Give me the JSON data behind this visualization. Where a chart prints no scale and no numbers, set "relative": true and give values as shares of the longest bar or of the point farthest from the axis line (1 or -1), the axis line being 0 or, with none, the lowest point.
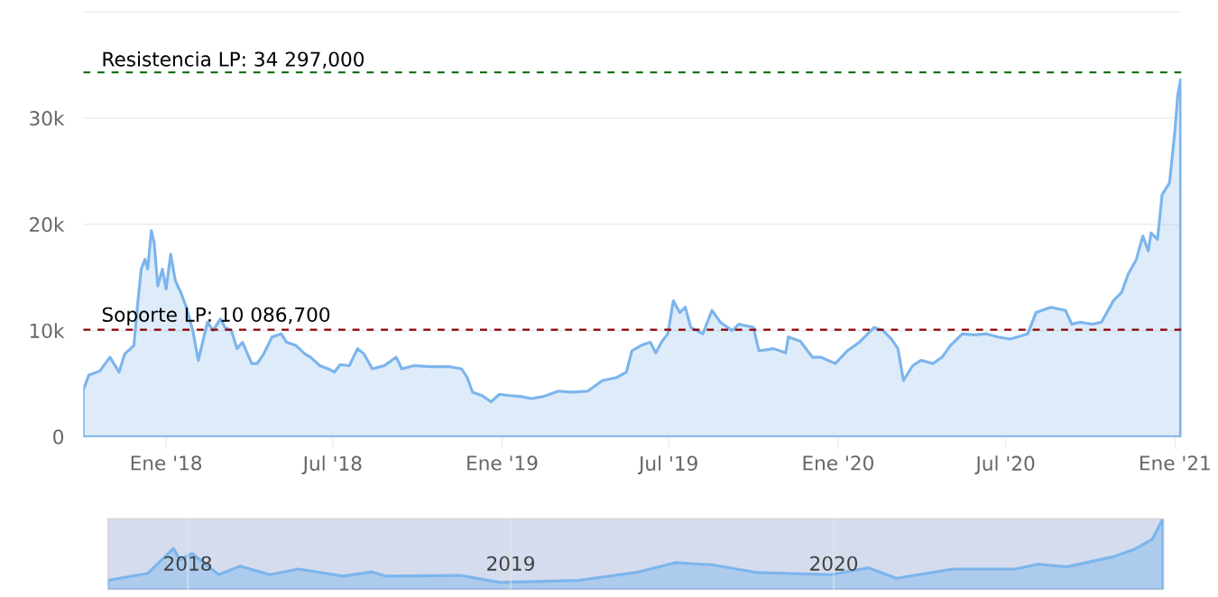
{
  "chart_data": [
    {
      "type": "area",
      "color": "#7cb5ec",
      "grid": "y",
      "xlim": [
        "2017-10-03",
        "2021-01-08"
      ],
      "ylim": [
        0,
        40000
      ],
      "xticks": [
        {
          "value": "2018-01-01",
          "label": "Ene '18"
        },
        {
          "value": "2018-07-01",
          "label": "Jul '18"
        },
        {
          "value": "2019-01-01",
          "label": "Ene '19"
        },
        {
          "value": "2019-07-01",
          "label": "Jul '19"
        },
        {
          "value": "2020-01-01",
          "label": "Ene '20"
        },
        {
          "value": "2020-07-01",
          "label": "Jul '20"
        },
        {
          "value": "2021-01-01",
          "label": "Ene '21"
        }
      ],
      "yticks": [
        0,
        {
          "value": 10000,
          "label": "10k"
        },
        {
          "value": 20000,
          "label": "20k"
        },
        {
          "value": 30000,
          "label": "30k"
        },
        {
          "value": 40000,
          "label": null
        }
      ],
      "ref_lines": [
        {
          "axis": "y",
          "value": 34297,
          "label": "Resistencia LP: 34 297,000",
          "color": "#006400",
          "line_style": "dashed"
        },
        {
          "axis": "y",
          "value": 10086.7,
          "label": "Soporte LP: 10 086,700",
          "color": "#8b0000",
          "line_style": "dashed"
        }
      ],
      "x": [
        "2017-10-03",
        "2017-10-09",
        "2017-10-21",
        "2017-11-01",
        "2017-11-11",
        "2017-11-17",
        "2017-11-27",
        "2017-12-02",
        "2017-12-05",
        "2017-12-09",
        "2017-12-12",
        "2017-12-16",
        "2017-12-19",
        "2017-12-23",
        "2017-12-28",
        "2018-01-01",
        "2018-01-06",
        "2018-01-11",
        "2018-01-17",
        "2018-01-23",
        "2018-01-30",
        "2018-02-05",
        "2018-02-08",
        "2018-02-15",
        "2018-02-21",
        "2018-03-01",
        "2018-03-06",
        "2018-03-13",
        "2018-03-19",
        "2018-03-25",
        "2018-04-04",
        "2018-04-10",
        "2018-04-17",
        "2018-04-26",
        "2018-05-06",
        "2018-05-12",
        "2018-05-22",
        "2018-06-01",
        "2018-06-07",
        "2018-06-17",
        "2018-06-26",
        "2018-07-03",
        "2018-07-09",
        "2018-07-19",
        "2018-07-28",
        "2018-08-04",
        "2018-08-13",
        "2018-08-26",
        "2018-09-08",
        "2018-09-14",
        "2018-09-27",
        "2018-10-16",
        "2018-11-05",
        "2018-11-18",
        "2018-11-24",
        "2018-11-30",
        "2018-12-10",
        "2018-12-20",
        "2018-12-29",
        "2019-01-08",
        "2019-01-21",
        "2019-02-02",
        "2019-02-15",
        "2019-03-03",
        "2019-03-19",
        "2019-04-04",
        "2019-04-20",
        "2019-05-06",
        "2019-05-16",
        "2019-05-22",
        "2019-06-01",
        "2019-06-11",
        "2019-06-17",
        "2019-06-23",
        "2019-06-30",
        "2019-07-06",
        "2019-07-13",
        "2019-07-19",
        "2019-07-25",
        "2019-08-07",
        "2019-08-17",
        "2019-08-26",
        "2019-09-08",
        "2019-09-15",
        "2019-10-01",
        "2019-10-07",
        "2019-10-23",
        "2019-11-05",
        "2019-11-08",
        "2019-11-21",
        "2019-12-04",
        "2019-12-13",
        "2019-12-29",
        "2020-01-11",
        "2020-01-24",
        "2020-02-09",
        "2020-02-19",
        "2020-02-28",
        "2020-03-06",
        "2020-03-12",
        "2020-03-22",
        "2020-03-31",
        "2020-04-13",
        "2020-04-23",
        "2020-05-02",
        "2020-05-15",
        "2020-05-28",
        "2020-06-10",
        "2020-06-23",
        "2020-07-06",
        "2020-07-25",
        "2020-08-03",
        "2020-08-19",
        "2020-09-04",
        "2020-09-11",
        "2020-09-20",
        "2020-10-03",
        "2020-10-13",
        "2020-10-19",
        "2020-10-26",
        "2020-11-04",
        "2020-11-11",
        "2020-11-20",
        "2020-11-27",
        "2020-12-03",
        "2020-12-06",
        "2020-12-13",
        "2020-12-18",
        "2020-12-26",
        "2021-01-01",
        "2021-01-04",
        "2021-01-07"
      ],
      "values": [
        4400,
        5800,
        6200,
        7500,
        6100,
        7800,
        8600,
        13300,
        15800,
        16700,
        15800,
        19400,
        18300,
        14200,
        15800,
        13900,
        17200,
        14700,
        13600,
        12200,
        10000,
        7200,
        8300,
        10800,
        10000,
        11100,
        10300,
        10000,
        8300,
        8900,
        6900,
        6900,
        7800,
        9400,
        9700,
        8900,
        8600,
        7800,
        7500,
        6700,
        6400,
        6100,
        6800,
        6700,
        8300,
        7800,
        6400,
        6700,
        7500,
        6400,
        6700,
        6600,
        6600,
        6400,
        5600,
        4200,
        3900,
        3300,
        4000,
        3900,
        3800,
        3600,
        3800,
        4300,
        4200,
        4300,
        5300,
        5600,
        6100,
        8100,
        8600,
        8900,
        7900,
        8900,
        9700,
        12800,
        11700,
        12200,
        10300,
        9700,
        11900,
        10800,
        10000,
        10600,
        10300,
        8100,
        8300,
        7900,
        9400,
        9000,
        7500,
        7500,
        6900,
        8100,
        8900,
        10300,
        10000,
        9200,
        8300,
        5300,
        6700,
        7200,
        6900,
        7500,
        8600,
        9700,
        9600,
        9700,
        9400,
        9200,
        9700,
        11700,
        12200,
        11900,
        10600,
        10800,
        10600,
        10800,
        11700,
        12800,
        13600,
        15300,
        16700,
        18900,
        17500,
        19200,
        18600,
        22800,
        23900,
        28900,
        32200,
        33600
      ]
    },
    {
      "type": "area",
      "relative": true,
      "color": "#7cb5ec",
      "grid": "x",
      "xlim": [
        "2017-10-03",
        "2021-01-08"
      ],
      "xticks": [
        {
          "value": "2018-01-01",
          "label": "2018"
        },
        {
          "value": "2019-01-01",
          "label": "2019"
        },
        {
          "value": "2020-01-01",
          "label": "2020"
        }
      ],
      "x": [
        "2017-10-03",
        "2017-11-17",
        "2017-12-16",
        "2017-12-23",
        "2018-01-06",
        "2018-02-05",
        "2018-03-01",
        "2018-04-04",
        "2018-05-06",
        "2018-06-26",
        "2018-07-28",
        "2018-08-13",
        "2018-11-05",
        "2018-12-20",
        "2019-03-19",
        "2019-05-22",
        "2019-07-06",
        "2019-08-17",
        "2019-10-07",
        "2019-12-29",
        "2020-02-09",
        "2020-03-12",
        "2020-05-15",
        "2020-07-25",
        "2020-08-19",
        "2020-09-20",
        "2020-11-11",
        "2020-12-06",
        "2020-12-26",
        "2021-01-07"
      ],
      "values": [
        0.13,
        0.23,
        0.58,
        0.42,
        0.51,
        0.21,
        0.33,
        0.21,
        0.29,
        0.19,
        0.25,
        0.19,
        0.2,
        0.1,
        0.13,
        0.24,
        0.38,
        0.35,
        0.24,
        0.21,
        0.31,
        0.16,
        0.29,
        0.29,
        0.36,
        0.32,
        0.46,
        0.57,
        0.71,
        1
      ]
    }
  ]
}
